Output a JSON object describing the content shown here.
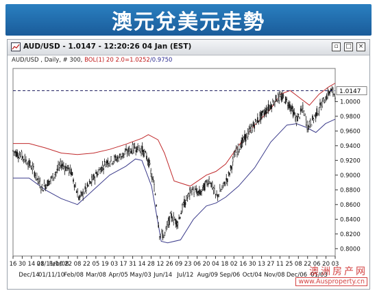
{
  "banner": {
    "title": "澳元兌美元走勢"
  },
  "window": {
    "title": "AUD/USD - 1.0147 - 12:20:26  04 Jan (EST)",
    "buttons": [
      "restore-icon",
      "maximize-icon",
      "close-icon"
    ]
  },
  "legend": {
    "prefix": "AUD/USD , Daily, # 300, ",
    "boll": "BOL(1) 20 2.0=1.0252",
    "lower": "/0.9750"
  },
  "watermark": {
    "text": "澳洲房产网",
    "url": "www.Ausproperty.cn"
  },
  "chart_data": {
    "type": "candlestick",
    "symbol": "AUD/USD",
    "ylim": [
      0.79,
      1.045
    ],
    "yticks": [
      "1.0000",
      "0.9800",
      "0.9600",
      "0.9400",
      "0.9200",
      "0.9000",
      "0.8800",
      "0.8600",
      "0.8400",
      "0.8200",
      "0.8000"
    ],
    "current_price": 1.0147,
    "current_label": "1.0147",
    "x_day_ticks": [
      "16",
      "30",
      "14",
      "28",
      "01/11/10",
      "Feb/08",
      "22",
      "08",
      "22",
      "05",
      "19",
      "03",
      "17",
      "31",
      "14",
      "28",
      "12",
      "26",
      "09",
      "23",
      "06",
      "20",
      "04",
      "18",
      "02",
      "16",
      "30",
      "13",
      "27",
      "11",
      "25",
      "08",
      "22",
      "06",
      "20",
      "03"
    ],
    "x_month_labels": [
      "Dec/14",
      "01/11/10",
      "Feb/08",
      "Mar/08",
      "Apr/05",
      "May/03",
      "Jun/14",
      "Jul/12",
      "Aug/09",
      "Sep/06",
      "Oct/04",
      "Nov/08",
      "Dec/06",
      "01/03"
    ],
    "price_path": [
      [
        0,
        0.933
      ],
      [
        0.03,
        0.925
      ],
      [
        0.06,
        0.91
      ],
      [
        0.09,
        0.882
      ],
      [
        0.12,
        0.895
      ],
      [
        0.15,
        0.915
      ],
      [
        0.18,
        0.905
      ],
      [
        0.205,
        0.868
      ],
      [
        0.23,
        0.883
      ],
      [
        0.26,
        0.902
      ],
      [
        0.29,
        0.918
      ],
      [
        0.32,
        0.922
      ],
      [
        0.35,
        0.93
      ],
      [
        0.38,
        0.938
      ],
      [
        0.4,
        0.935
      ],
      [
        0.42,
        0.92
      ],
      [
        0.44,
        0.88
      ],
      [
        0.455,
        0.82
      ],
      [
        0.47,
        0.818
      ],
      [
        0.49,
        0.845
      ],
      [
        0.51,
        0.835
      ],
      [
        0.53,
        0.86
      ],
      [
        0.555,
        0.88
      ],
      [
        0.58,
        0.875
      ],
      [
        0.61,
        0.895
      ],
      [
        0.63,
        0.87
      ],
      [
        0.65,
        0.882
      ],
      [
        0.67,
        0.9
      ],
      [
        0.69,
        0.93
      ],
      [
        0.72,
        0.95
      ],
      [
        0.75,
        0.97
      ],
      [
        0.78,
        0.985
      ],
      [
        0.8,
        0.995
      ],
      [
        0.82,
        1.005
      ],
      [
        0.84,
        1.005
      ],
      [
        0.86,
        0.995
      ],
      [
        0.88,
        0.975
      ],
      [
        0.9,
        0.99
      ],
      [
        0.915,
        0.965
      ],
      [
        0.93,
        0.975
      ],
      [
        0.95,
        0.99
      ],
      [
        0.97,
        1.005
      ],
      [
        0.985,
        1.015
      ],
      [
        1.0,
        1.01
      ]
    ],
    "upper_band": [
      [
        0,
        0.943
      ],
      [
        0.05,
        0.943
      ],
      [
        0.1,
        0.937
      ],
      [
        0.15,
        0.93
      ],
      [
        0.2,
        0.928
      ],
      [
        0.25,
        0.93
      ],
      [
        0.3,
        0.935
      ],
      [
        0.35,
        0.942
      ],
      [
        0.4,
        0.95
      ],
      [
        0.42,
        0.955
      ],
      [
        0.45,
        0.948
      ],
      [
        0.47,
        0.93
      ],
      [
        0.5,
        0.892
      ],
      [
        0.55,
        0.885
      ],
      [
        0.6,
        0.9
      ],
      [
        0.63,
        0.905
      ],
      [
        0.66,
        0.915
      ],
      [
        0.7,
        0.94
      ],
      [
        0.75,
        0.968
      ],
      [
        0.8,
        0.99
      ],
      [
        0.83,
        1.01
      ],
      [
        0.86,
        1.015
      ],
      [
        0.89,
        1.005
      ],
      [
        0.92,
        0.995
      ],
      [
        0.95,
        1.01
      ],
      [
        0.98,
        1.02
      ],
      [
        1.0,
        1.025
      ]
    ],
    "lower_band": [
      [
        0,
        0.896
      ],
      [
        0.05,
        0.896
      ],
      [
        0.1,
        0.88
      ],
      [
        0.15,
        0.868
      ],
      [
        0.2,
        0.86
      ],
      [
        0.25,
        0.88
      ],
      [
        0.3,
        0.9
      ],
      [
        0.35,
        0.912
      ],
      [
        0.38,
        0.922
      ],
      [
        0.4,
        0.92
      ],
      [
        0.43,
        0.885
      ],
      [
        0.46,
        0.81
      ],
      [
        0.48,
        0.808
      ],
      [
        0.52,
        0.812
      ],
      [
        0.56,
        0.84
      ],
      [
        0.6,
        0.858
      ],
      [
        0.63,
        0.862
      ],
      [
        0.66,
        0.87
      ],
      [
        0.7,
        0.885
      ],
      [
        0.75,
        0.91
      ],
      [
        0.8,
        0.945
      ],
      [
        0.85,
        0.968
      ],
      [
        0.88,
        0.97
      ],
      [
        0.91,
        0.965
      ],
      [
        0.94,
        0.958
      ],
      [
        0.97,
        0.97
      ],
      [
        1.0,
        0.976
      ]
    ]
  }
}
